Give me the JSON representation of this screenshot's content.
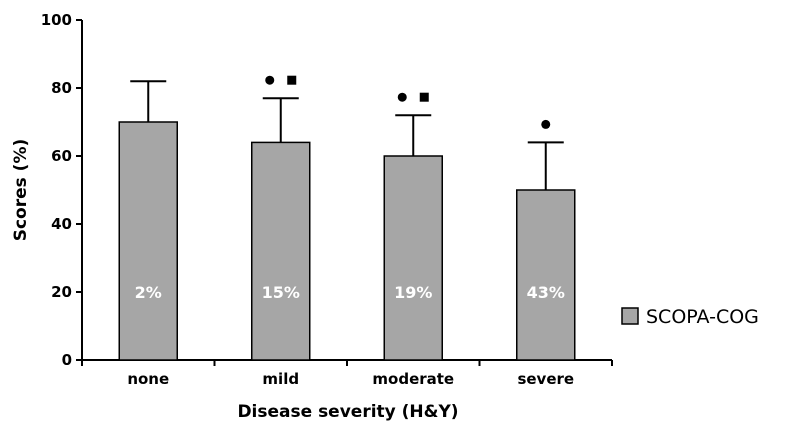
{
  "chart_data": {
    "type": "bar",
    "categories": [
      "none",
      "mild",
      "moderate",
      "severe"
    ],
    "series": [
      {
        "name": "SCOPA-COG",
        "values": [
          70,
          64,
          60,
          50
        ],
        "error_upper": [
          82,
          77,
          72,
          64
        ],
        "bar_labels": [
          "2%",
          "15%",
          "19%",
          "43%"
        ],
        "color": "#a6a6a6"
      }
    ],
    "significance_markers": [
      {
        "category_index": 1,
        "markers": [
          "circle",
          "square"
        ]
      },
      {
        "category_index": 2,
        "markers": [
          "circle",
          "square"
        ]
      },
      {
        "category_index": 3,
        "markers": [
          "circle"
        ]
      }
    ],
    "xlabel": "Disease severity (H&Y)",
    "ylabel": "Scores (%)",
    "ylim": [
      0,
      100
    ],
    "yticks": [
      0,
      20,
      40,
      60,
      80,
      100
    ],
    "grid": false,
    "legend": {
      "position": "right",
      "entries": [
        "SCOPA-COG"
      ]
    }
  }
}
